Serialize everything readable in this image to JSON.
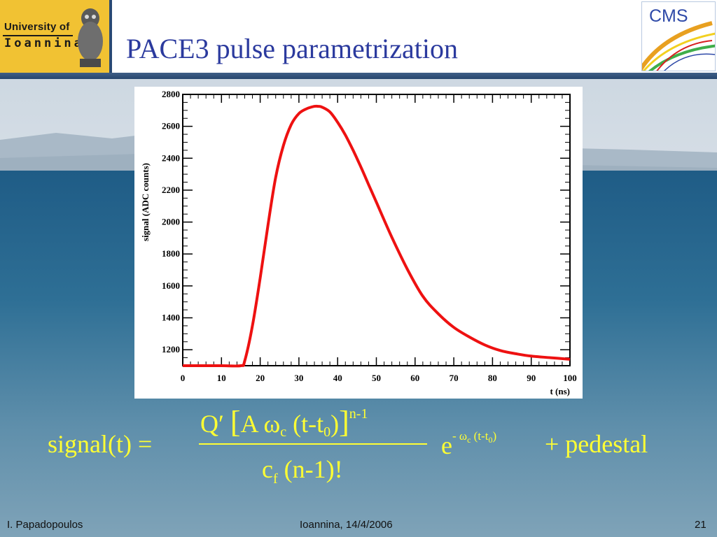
{
  "slide": {
    "title": "PACE3 pulse parametrization",
    "logo_left": {
      "line1": "University of",
      "line2": "Ioannina"
    },
    "logo_right": {
      "text": "CMS"
    }
  },
  "colors": {
    "title": "#2b3a9e",
    "formula": "#ffff33",
    "curve": "#ee1111",
    "header_rule": "#2f4f7a"
  },
  "formula": {
    "lhs": "signal(t) =",
    "num_q": "Q′",
    "bracket_open": "[",
    "num_a": "A ω",
    "sub_c1": "c",
    "num_t": "(t-t",
    "sub_0a": "0",
    "num_close": ")",
    "bracket_close": "]",
    "sup_n1": "n-1",
    "den_c": "c",
    "sub_f": "f",
    "den_n": "(n-1)!",
    "exp_e": "e",
    "exp_minus_w": "- ω",
    "sub_c2": "c",
    "exp_t": "(t-t",
    "sub_0b": "0",
    "exp_close": ")",
    "tail": "+ pedestal"
  },
  "footer": {
    "author": "I. Papadopoulos",
    "venue": "Ioannina, 14/4/2006",
    "page": "21"
  },
  "chart_data": {
    "type": "line",
    "xlabel": "t (ns)",
    "ylabel": "signal (ADC counts)",
    "xlim": [
      0,
      100
    ],
    "ylim": [
      1100,
      2800
    ],
    "xticks": [
      0,
      10,
      20,
      30,
      40,
      50,
      60,
      70,
      80,
      90,
      100
    ],
    "yticks": [
      1200,
      1400,
      1600,
      1800,
      2000,
      2200,
      2400,
      2600,
      2800
    ],
    "grid": false,
    "series": [
      {
        "x": [
          0,
          5,
          10,
          15,
          16,
          18,
          20,
          22,
          24,
          26,
          28,
          30,
          32,
          34,
          35,
          36,
          38,
          40,
          42,
          44,
          46,
          48,
          50,
          54,
          58,
          62,
          66,
          70,
          74,
          78,
          82,
          86,
          90,
          95,
          100
        ],
        "y": [
          1100,
          1100,
          1100,
          1100,
          1130,
          1350,
          1650,
          1980,
          2280,
          2480,
          2610,
          2680,
          2710,
          2725,
          2725,
          2720,
          2690,
          2625,
          2545,
          2450,
          2345,
          2235,
          2125,
          1905,
          1705,
          1535,
          1425,
          1340,
          1280,
          1230,
          1195,
          1175,
          1160,
          1150,
          1140
        ]
      }
    ]
  }
}
